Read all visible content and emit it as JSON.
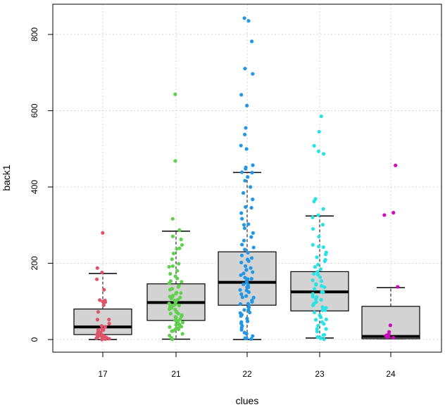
{
  "chart_data": {
    "type": "boxplot",
    "title": "",
    "xlabel": "clues",
    "ylabel": "back1",
    "ylim": [
      -35,
      880
    ],
    "yticks": [
      0,
      200,
      400,
      600,
      800
    ],
    "grid": true,
    "categories": [
      "17",
      "21",
      "22",
      "23",
      "24"
    ],
    "colors": [
      "#DF536B",
      "#61D04F",
      "#2297E6",
      "#28E2E5",
      "#CD0BBC"
    ],
    "box_fill": "#D3D3D3",
    "boxes": [
      {
        "category": "17",
        "whisker_low": 0,
        "q1": 13,
        "median": 33,
        "q3": 80,
        "whisker_high": 173
      },
      {
        "category": "21",
        "whisker_low": 1,
        "q1": 50,
        "median": 97,
        "q3": 146,
        "whisker_high": 284
      },
      {
        "category": "22",
        "whisker_low": 0,
        "q1": 90,
        "median": 150,
        "q3": 230,
        "whisker_high": 438
      },
      {
        "category": "23",
        "whisker_low": 4,
        "q1": 75,
        "median": 125,
        "q3": 178,
        "whisker_high": 324
      },
      {
        "category": "24",
        "whisker_low": 2,
        "q1": 2,
        "median": 8,
        "q3": 87,
        "whisker_high": 136
      }
    ],
    "points": [
      {
        "category": "17",
        "values": [
          280,
          186,
          176,
          160,
          130,
          105,
          100,
          98,
          96,
          90,
          70,
          55,
          52,
          40,
          36,
          32,
          28,
          26,
          24,
          20,
          18,
          15,
          12,
          10,
          8,
          6,
          5,
          4,
          3,
          2,
          1,
          0
        ]
      },
      {
        "category": "21",
        "values": [
          645,
          468,
          315,
          285,
          272,
          265,
          250,
          240,
          235,
          225,
          210,
          200,
          195,
          190,
          180,
          175,
          168,
          160,
          155,
          150,
          146,
          142,
          140,
          135,
          130,
          128,
          125,
          120,
          118,
          115,
          112,
          110,
          108,
          105,
          102,
          100,
          98,
          96,
          94,
          92,
          90,
          88,
          86,
          84,
          82,
          80,
          78,
          75,
          72,
          70,
          68,
          65,
          62,
          60,
          58,
          55,
          52,
          50,
          48,
          45,
          42,
          40,
          38,
          35,
          32,
          30,
          28,
          25,
          22,
          20,
          15,
          10,
          5,
          2
        ]
      },
      {
        "category": "22",
        "values": [
          845,
          835,
          780,
          710,
          697,
          640,
          612,
          555,
          535,
          510,
          500,
          455,
          450,
          445,
          440,
          435,
          425,
          415,
          400,
          385,
          370,
          350,
          345,
          330,
          318,
          305,
          300,
          290,
          280,
          270,
          260,
          250,
          242,
          235,
          228,
          220,
          215,
          210,
          205,
          200,
          195,
          190,
          185,
          180,
          176,
          172,
          168,
          165,
          160,
          156,
          152,
          148,
          145,
          142,
          138,
          135,
          130,
          126,
          122,
          118,
          115,
          112,
          108,
          105,
          100,
          96,
          92,
          88,
          84,
          80,
          76,
          72,
          68,
          64,
          60,
          55,
          50,
          45,
          40,
          35,
          30,
          25,
          20,
          15,
          10,
          5,
          2,
          0
        ]
      },
      {
        "category": "23",
        "values": [
          585,
          547,
          508,
          492,
          488,
          370,
          362,
          340,
          325,
          320,
          300,
          290,
          270,
          250,
          245,
          240,
          230,
          222,
          215,
          210,
          205,
          198,
          192,
          185,
          178,
          172,
          168,
          162,
          158,
          152,
          148,
          145,
          140,
          135,
          130,
          126,
          122,
          118,
          114,
          110,
          106,
          102,
          98,
          94,
          90,
          86,
          82,
          78,
          74,
          70,
          65,
          60,
          55,
          50,
          45,
          40,
          35,
          30,
          25,
          20,
          15,
          10,
          8,
          5,
          3,
          2
        ]
      },
      {
        "category": "24",
        "values": [
          458,
          333,
          328,
          136,
          37,
          18,
          12,
          10,
          8,
          6,
          5,
          3
        ]
      }
    ]
  }
}
